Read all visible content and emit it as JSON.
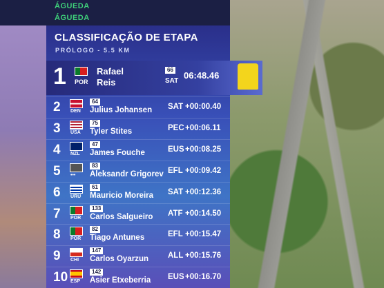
{
  "header": {
    "town": [
      "ÁGUEDA",
      "ÁGUEDA"
    ],
    "title": "CLASSIFICAÇÃO DE ETAPA",
    "subtitle": "PRÓLOGO - 5.5 KM"
  },
  "leader": {
    "position": "1",
    "country": "POR",
    "first_name": "Rafael",
    "last_name": "Reis",
    "bib": "66",
    "team": "SAT",
    "time": "06:48.46"
  },
  "rows": [
    {
      "position": "2",
      "country": "DEN",
      "bib": "64",
      "name": "Julius Johansen",
      "team": "SAT",
      "gap": "+00:00.40"
    },
    {
      "position": "3",
      "country": "USA",
      "bib": "75",
      "name": "Tyler Stites",
      "team": "PEC",
      "gap": "+00:06.11"
    },
    {
      "position": "4",
      "country": "NZL",
      "bib": "47",
      "name": "James Fouche",
      "team": "EUS",
      "gap": "+00:08.25"
    },
    {
      "position": "5",
      "country": "•••",
      "bib": "83",
      "name": "Aleksandr Grigorev",
      "team": "EFL",
      "gap": "+00:09.42"
    },
    {
      "position": "6",
      "country": "URU",
      "bib": "61",
      "name": "Mauricio Moreira",
      "team": "SAT",
      "gap": "+00:12.36"
    },
    {
      "position": "7",
      "country": "POR",
      "bib": "133",
      "name": "Carlos Salgueiro",
      "team": "ATF",
      "gap": "+00:14.50"
    },
    {
      "position": "8",
      "country": "POR",
      "bib": "82",
      "name": "Tiago Antunes",
      "team": "EFL",
      "gap": "+00:15.47"
    },
    {
      "position": "9",
      "country": "CHI",
      "bib": "147",
      "name": "Carlos Oyarzun",
      "team": "ALL",
      "gap": "+00:15.76"
    },
    {
      "position": "10",
      "country": "ESP",
      "bib": "142",
      "name": "Asier Etxeberria",
      "team": "EUS",
      "gap": "+00:16.70"
    }
  ]
}
